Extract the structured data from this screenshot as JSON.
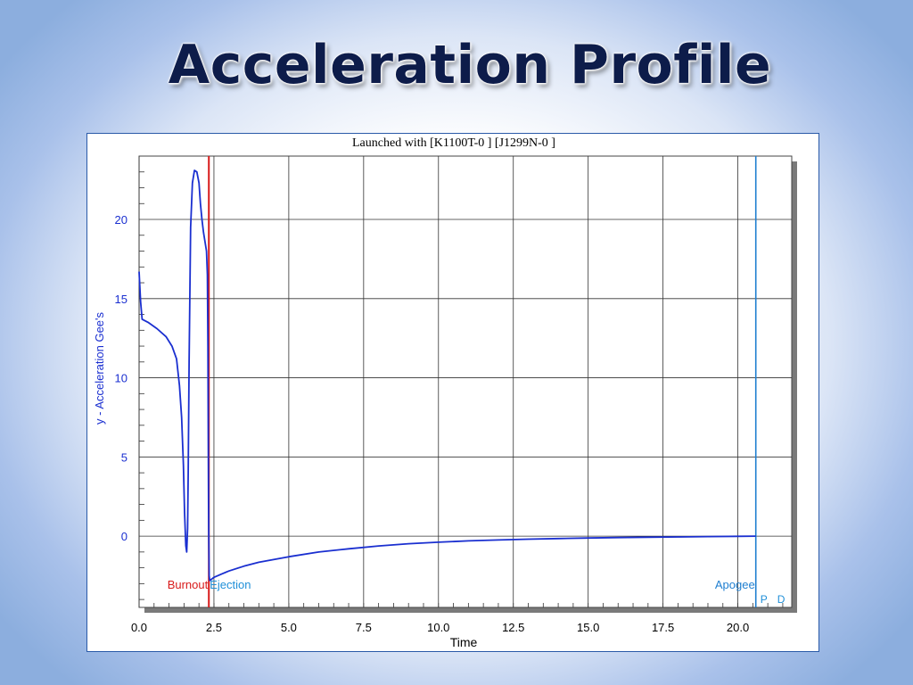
{
  "slide": {
    "title": "Acceleration Profile"
  },
  "colors": {
    "curve": "#1a2fd0",
    "burnout": "#d81a1a",
    "ejection": "#1f8fd8",
    "apogee": "#1f7fd0",
    "axis_text": "#1a2fd0"
  },
  "chart_data": {
    "type": "line",
    "title": "Launched with [K1100T-0   ] [J1299N-0   ]",
    "xlabel": "Time",
    "ylabel": "y - Acceleration Gee's",
    "xlim": [
      0,
      21.8
    ],
    "ylim": [
      -4.5,
      24
    ],
    "x_ticks": [
      "0.0",
      "2.5",
      "5.0",
      "7.5",
      "10.0",
      "12.5",
      "15.0",
      "17.5",
      "20.0"
    ],
    "y_ticks": [
      "0",
      "5",
      "10",
      "15",
      "20"
    ],
    "grid": true,
    "series": [
      {
        "x": [
          0,
          0.05,
          0.1,
          0.3,
          0.6,
          0.9,
          1.1,
          1.25,
          1.35,
          1.42,
          1.48,
          1.52,
          1.56,
          1.59,
          1.62,
          1.64,
          1.67,
          1.72,
          1.78,
          1.85,
          1.93,
          2.0,
          2.05,
          2.1,
          2.15,
          2.2,
          2.25,
          2.28,
          2.3,
          2.31,
          2.32,
          2.33,
          2.34,
          2.36,
          2.4,
          2.5,
          2.75,
          3.0,
          3.5,
          4.0,
          5.0,
          6.0,
          7.0,
          8.0,
          9.0,
          10.0,
          11.0,
          12.0,
          13.0,
          14.0,
          15.0,
          16.0,
          17.0,
          18.0,
          19.0,
          20.0,
          20.6
        ],
        "y": [
          16.7,
          14.8,
          13.7,
          13.5,
          13.1,
          12.6,
          12.0,
          11.2,
          9.5,
          7.5,
          4.5,
          1.5,
          -0.6,
          -1.0,
          0.5,
          4.0,
          11.0,
          19.5,
          22.3,
          23.1,
          23.0,
          22.3,
          21.0,
          20.0,
          19.2,
          18.6,
          18.0,
          16.5,
          12.0,
          6.0,
          2.0,
          -0.3,
          -2.5,
          -2.8,
          -2.75,
          -2.6,
          -2.4,
          -2.2,
          -1.9,
          -1.65,
          -1.3,
          -1.0,
          -0.8,
          -0.62,
          -0.48,
          -0.38,
          -0.3,
          -0.24,
          -0.19,
          -0.15,
          -0.12,
          -0.09,
          -0.07,
          -0.05,
          -0.03,
          -0.01,
          0.0
        ]
      }
    ],
    "events": [
      {
        "name": "Burnout",
        "x": 2.33
      },
      {
        "name": "Ejection",
        "x": 2.33
      },
      {
        "name": "Apogee",
        "x": 20.6
      }
    ],
    "clipped_labels": [
      "P",
      "D"
    ]
  }
}
